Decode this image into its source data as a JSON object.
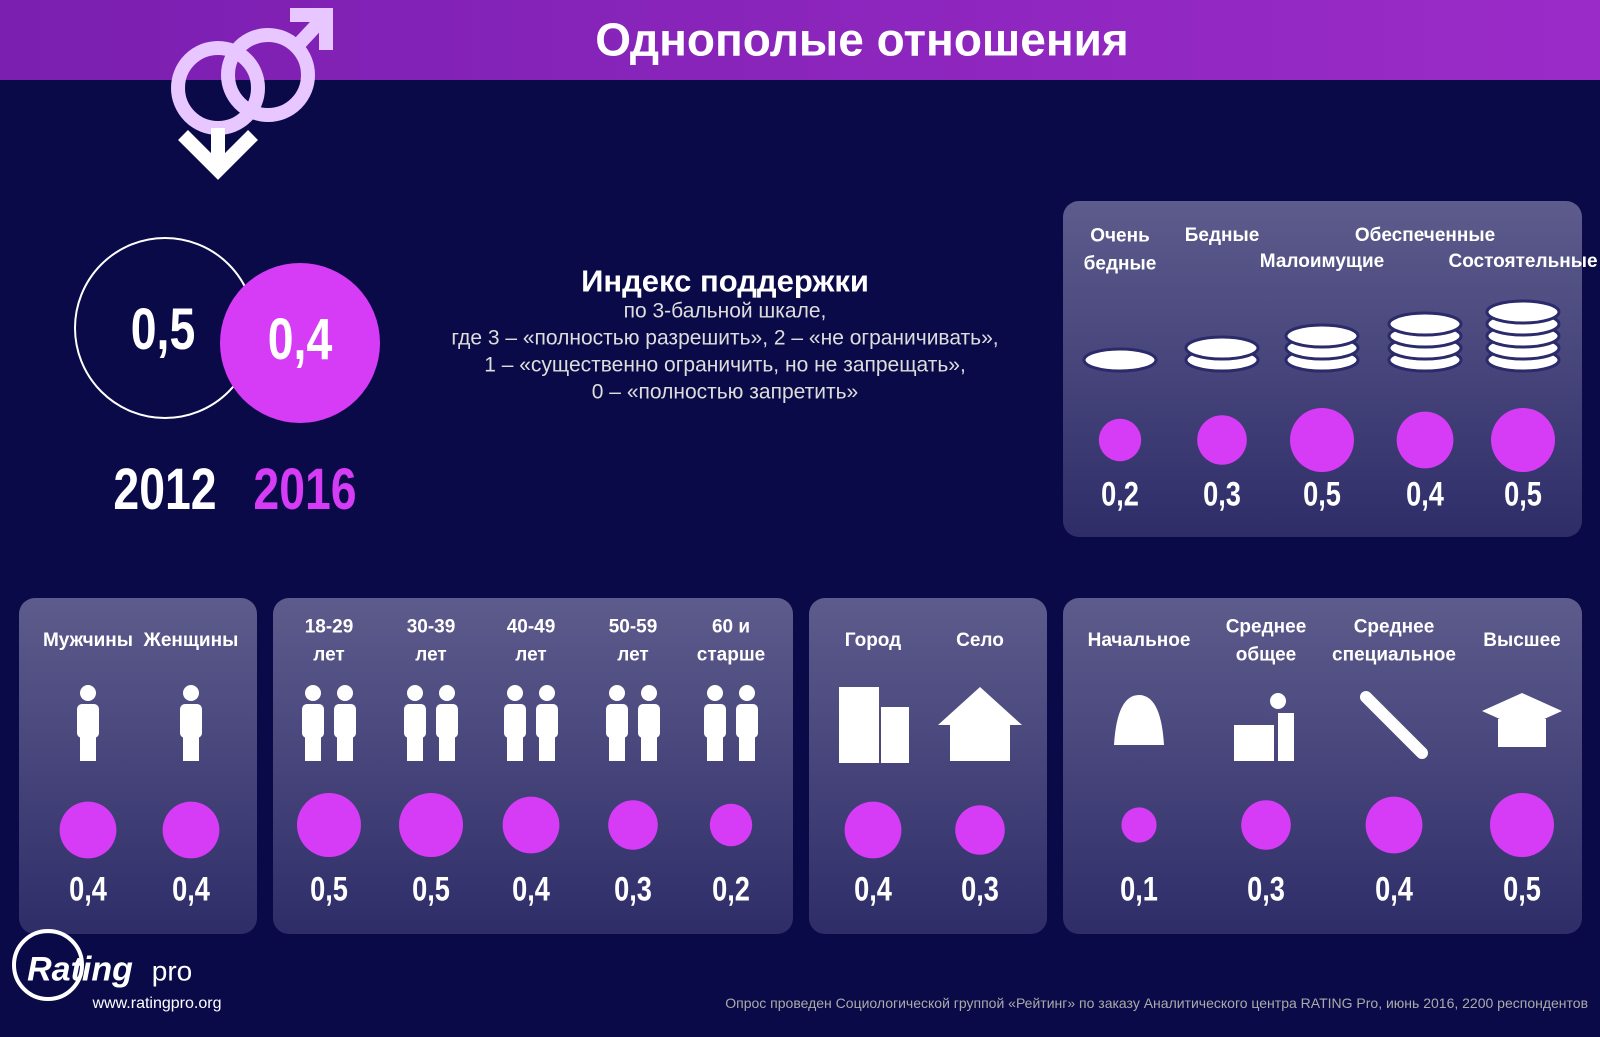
{
  "header": {
    "title": "Однополые отношения"
  },
  "overall": {
    "items": [
      {
        "year": "2012",
        "value": 0.5,
        "value_label": "0,5"
      },
      {
        "year": "2016",
        "value": 0.4,
        "value_label": "0,4"
      }
    ]
  },
  "legend": {
    "title": "Индекс поддержки",
    "lines": [
      "по 3-бальной шкале,",
      "где 3 – «полностью разрешить», 2 – «не ограничивать»,",
      "1 – «существенно ограничить, но не запрещать»,",
      "0 – «полностью запретить»"
    ]
  },
  "groups": [
    {
      "items": [
        {
          "label": "Очень\nбедные",
          "value": 0.2,
          "value_label": "0,2"
        },
        {
          "label": "Бедные",
          "value": 0.3,
          "value_label": "0,3"
        },
        {
          "label": "Малоимущие",
          "value": 0.5,
          "value_label": "0,5"
        },
        {
          "label": "Обеспеченные",
          "value": 0.4,
          "value_label": "0,4"
        },
        {
          "label": "Состоятельные",
          "value": 0.5,
          "value_label": "0,5"
        }
      ]
    },
    {
      "items": [
        {
          "label": "Мужчины",
          "value": 0.4,
          "value_label": "0,4"
        },
        {
          "label": "Женщины",
          "value": 0.4,
          "value_label": "0,4"
        }
      ]
    },
    {
      "items": [
        {
          "label": "18-29\nлет",
          "value": 0.5,
          "value_label": "0,5"
        },
        {
          "label": "30-39\nлет",
          "value": 0.5,
          "value_label": "0,5"
        },
        {
          "label": "40-49\nлет",
          "value": 0.4,
          "value_label": "0,4"
        },
        {
          "label": "50-59\nлет",
          "value": 0.3,
          "value_label": "0,3"
        },
        {
          "label": "60 и\nстарше",
          "value": 0.2,
          "value_label": "0,2"
        }
      ]
    },
    {
      "items": [
        {
          "label": "Город",
          "value": 0.4,
          "value_label": "0,4"
        },
        {
          "label": "Село",
          "value": 0.3,
          "value_label": "0,3"
        }
      ]
    },
    {
      "items": [
        {
          "label": "Начальное",
          "value": 0.1,
          "value_label": "0,1"
        },
        {
          "label": "Среднее\nобщее",
          "value": 0.3,
          "value_label": "0,3"
        },
        {
          "label": "Среднее\nспециальное",
          "value": 0.4,
          "value_label": "0,4"
        },
        {
          "label": "Высшее",
          "value": 0.5,
          "value_label": "0,5"
        }
      ]
    }
  ],
  "source": "Опрос проведен Социологической группой «Рейтинг» по заказу Аналитического центра RATING Pro, июнь 2016, 2200 респондентов",
  "logo": {
    "name": "Rating",
    "suffix": "pro",
    "url": "www.ratingpro.org"
  }
}
